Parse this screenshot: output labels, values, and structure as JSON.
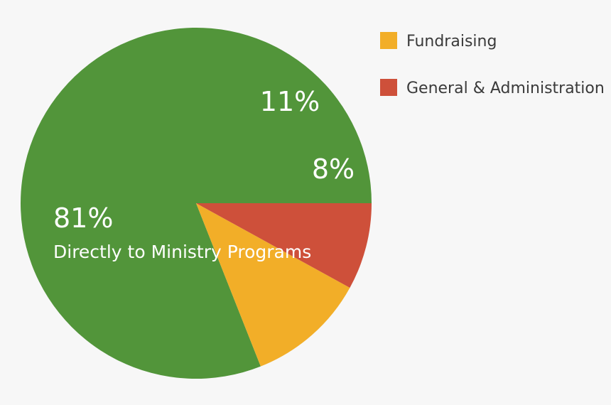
{
  "chart_data": {
    "type": "pie",
    "title": "",
    "start_angle_deg": 0,
    "direction": "counterclockwise",
    "slices": [
      {
        "label": "Directly to Ministry Programs",
        "value": 81,
        "value_label": "81%",
        "color": "#52953a",
        "in_legend": false
      },
      {
        "label": "Fundraising",
        "value": 11,
        "value_label": "11%",
        "color": "#f2ae28",
        "in_legend": true
      },
      {
        "label": "General & Administration",
        "value": 8,
        "value_label": "8%",
        "color": "#ce503a",
        "in_legend": true
      }
    ],
    "legend": {
      "position": "top-right",
      "entries": [
        "Fundraising",
        "General & Administration"
      ]
    }
  }
}
